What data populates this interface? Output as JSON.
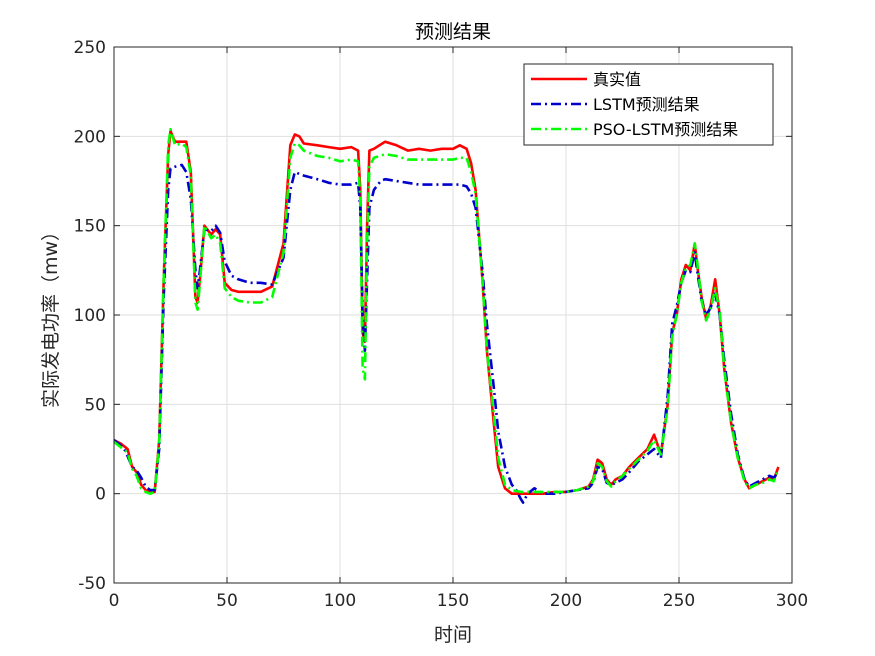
{
  "chart_data": {
    "type": "line",
    "title": "预测结果",
    "xlabel": "时间",
    "ylabel": "实际发电功率（mw）",
    "xlim": [
      0,
      300
    ],
    "ylim": [
      -50,
      250
    ],
    "xticks": [
      0,
      50,
      100,
      150,
      200,
      250,
      300
    ],
    "yticks": [
      -50,
      0,
      50,
      100,
      150,
      200,
      250
    ],
    "grid": true,
    "legend_position": "top-right",
    "series": [
      {
        "name": "真实值",
        "color": "#ff0000",
        "style": "solid",
        "points": [
          [
            0,
            30
          ],
          [
            3,
            28
          ],
          [
            6,
            25
          ],
          [
            8,
            15
          ],
          [
            10,
            12
          ],
          [
            12,
            5
          ],
          [
            14,
            2
          ],
          [
            16,
            1
          ],
          [
            18,
            1
          ],
          [
            20,
            30
          ],
          [
            22,
            120
          ],
          [
            24,
            190
          ],
          [
            25,
            203
          ],
          [
            27,
            197
          ],
          [
            30,
            197
          ],
          [
            32,
            197
          ],
          [
            34,
            180
          ],
          [
            36,
            110
          ],
          [
            37,
            107
          ],
          [
            38,
            120
          ],
          [
            40,
            150
          ],
          [
            43,
            145
          ],
          [
            45,
            148
          ],
          [
            47,
            145
          ],
          [
            49,
            118
          ],
          [
            52,
            114
          ],
          [
            55,
            113
          ],
          [
            60,
            113
          ],
          [
            65,
            113
          ],
          [
            70,
            116
          ],
          [
            75,
            140
          ],
          [
            78,
            195
          ],
          [
            80,
            201
          ],
          [
            82,
            200
          ],
          [
            84,
            196
          ],
          [
            90,
            195
          ],
          [
            95,
            194
          ],
          [
            100,
            193
          ],
          [
            105,
            194
          ],
          [
            108,
            192
          ],
          [
            109,
            170
          ],
          [
            110,
            90
          ],
          [
            111,
            85
          ],
          [
            112,
            150
          ],
          [
            113,
            192
          ],
          [
            115,
            193
          ],
          [
            120,
            197
          ],
          [
            125,
            195
          ],
          [
            130,
            192
          ],
          [
            135,
            193
          ],
          [
            140,
            192
          ],
          [
            145,
            193
          ],
          [
            150,
            193
          ],
          [
            153,
            195
          ],
          [
            156,
            193
          ],
          [
            158,
            185
          ],
          [
            160,
            170
          ],
          [
            163,
            120
          ],
          [
            165,
            80
          ],
          [
            168,
            40
          ],
          [
            170,
            15
          ],
          [
            173,
            3
          ],
          [
            176,
            0
          ],
          [
            180,
            0
          ],
          [
            185,
            0
          ],
          [
            190,
            0
          ],
          [
            195,
            1
          ],
          [
            200,
            1
          ],
          [
            205,
            2
          ],
          [
            210,
            4
          ],
          [
            212,
            8
          ],
          [
            214,
            19
          ],
          [
            216,
            17
          ],
          [
            218,
            8
          ],
          [
            220,
            5
          ],
          [
            222,
            8
          ],
          [
            225,
            10
          ],
          [
            228,
            15
          ],
          [
            232,
            20
          ],
          [
            236,
            25
          ],
          [
            239,
            33
          ],
          [
            242,
            22
          ],
          [
            245,
            50
          ],
          [
            247,
            90
          ],
          [
            249,
            100
          ],
          [
            251,
            120
          ],
          [
            253,
            128
          ],
          [
            255,
            125
          ],
          [
            257,
            140
          ],
          [
            258,
            128
          ],
          [
            260,
            110
          ],
          [
            262,
            98
          ],
          [
            264,
            105
          ],
          [
            266,
            120
          ],
          [
            268,
            100
          ],
          [
            270,
            70
          ],
          [
            273,
            40
          ],
          [
            276,
            20
          ],
          [
            279,
            8
          ],
          [
            281,
            3
          ],
          [
            284,
            5
          ],
          [
            287,
            7
          ],
          [
            290,
            9
          ],
          [
            292,
            8
          ],
          [
            294,
            15
          ]
        ]
      },
      {
        "name": "LSTM预测结果",
        "color": "#0000cd",
        "style": "dashdot",
        "points": [
          [
            0,
            30
          ],
          [
            3,
            27
          ],
          [
            5,
            24
          ],
          [
            8,
            15
          ],
          [
            10,
            13
          ],
          [
            12,
            9
          ],
          [
            14,
            4
          ],
          [
            16,
            2
          ],
          [
            18,
            2
          ],
          [
            20,
            25
          ],
          [
            22,
            110
          ],
          [
            24,
            170
          ],
          [
            25,
            182
          ],
          [
            27,
            183
          ],
          [
            30,
            184
          ],
          [
            32,
            180
          ],
          [
            34,
            165
          ],
          [
            36,
            125
          ],
          [
            37,
            115
          ],
          [
            38,
            125
          ],
          [
            40,
            148
          ],
          [
            43,
            147
          ],
          [
            45,
            150
          ],
          [
            47,
            146
          ],
          [
            49,
            130
          ],
          [
            52,
            122
          ],
          [
            55,
            120
          ],
          [
            60,
            118
          ],
          [
            65,
            118
          ],
          [
            70,
            117
          ],
          [
            75,
            132
          ],
          [
            78,
            170
          ],
          [
            80,
            180
          ],
          [
            82,
            179
          ],
          [
            84,
            178
          ],
          [
            90,
            176
          ],
          [
            95,
            174
          ],
          [
            100,
            173
          ],
          [
            105,
            173
          ],
          [
            108,
            174
          ],
          [
            109,
            160
          ],
          [
            110,
            100
          ],
          [
            111,
            80
          ],
          [
            112,
            120
          ],
          [
            113,
            160
          ],
          [
            115,
            170
          ],
          [
            118,
            175
          ],
          [
            120,
            176
          ],
          [
            125,
            175
          ],
          [
            130,
            174
          ],
          [
            135,
            173
          ],
          [
            140,
            173
          ],
          [
            145,
            173
          ],
          [
            150,
            173
          ],
          [
            153,
            173
          ],
          [
            156,
            172
          ],
          [
            158,
            168
          ],
          [
            160,
            160
          ],
          [
            163,
            125
          ],
          [
            165,
            95
          ],
          [
            168,
            60
          ],
          [
            170,
            35
          ],
          [
            173,
            15
          ],
          [
            176,
            5
          ],
          [
            178,
            2
          ],
          [
            180,
            -3
          ],
          [
            181,
            -5
          ],
          [
            183,
            0
          ],
          [
            186,
            3
          ],
          [
            190,
            0
          ],
          [
            195,
            0
          ],
          [
            200,
            1
          ],
          [
            205,
            2
          ],
          [
            210,
            3
          ],
          [
            212,
            6
          ],
          [
            214,
            15
          ],
          [
            216,
            14
          ],
          [
            218,
            6
          ],
          [
            220,
            5
          ],
          [
            222,
            6
          ],
          [
            225,
            8
          ],
          [
            228,
            12
          ],
          [
            232,
            18
          ],
          [
            236,
            22
          ],
          [
            239,
            25
          ],
          [
            242,
            20
          ],
          [
            245,
            55
          ],
          [
            247,
            95
          ],
          [
            249,
            105
          ],
          [
            251,
            118
          ],
          [
            253,
            125
          ],
          [
            255,
            124
          ],
          [
            257,
            135
          ],
          [
            258,
            125
          ],
          [
            260,
            108
          ],
          [
            262,
            100
          ],
          [
            264,
            104
          ],
          [
            266,
            112
          ],
          [
            268,
            100
          ],
          [
            270,
            75
          ],
          [
            273,
            45
          ],
          [
            276,
            22
          ],
          [
            279,
            8
          ],
          [
            281,
            4
          ],
          [
            284,
            6
          ],
          [
            287,
            8
          ],
          [
            290,
            10
          ],
          [
            292,
            9
          ],
          [
            294,
            12
          ]
        ]
      },
      {
        "name": "PSO-LSTM预测结果",
        "color": "#00ff00",
        "style": "dashdot",
        "points": [
          [
            0,
            29
          ],
          [
            3,
            26
          ],
          [
            6,
            23
          ],
          [
            8,
            14
          ],
          [
            10,
            10
          ],
          [
            12,
            3
          ],
          [
            14,
            1
          ],
          [
            16,
            0
          ],
          [
            18,
            1
          ],
          [
            20,
            28
          ],
          [
            22,
            120
          ],
          [
            24,
            195
          ],
          [
            25,
            204
          ],
          [
            27,
            195
          ],
          [
            30,
            196
          ],
          [
            32,
            194
          ],
          [
            34,
            178
          ],
          [
            36,
            107
          ],
          [
            37,
            103
          ],
          [
            38,
            118
          ],
          [
            40,
            150
          ],
          [
            43,
            143
          ],
          [
            45,
            145
          ],
          [
            47,
            140
          ],
          [
            49,
            115
          ],
          [
            52,
            110
          ],
          [
            55,
            108
          ],
          [
            60,
            107
          ],
          [
            65,
            107
          ],
          [
            70,
            110
          ],
          [
            75,
            135
          ],
          [
            78,
            188
          ],
          [
            80,
            196
          ],
          [
            82,
            195
          ],
          [
            84,
            192
          ],
          [
            90,
            189
          ],
          [
            95,
            188
          ],
          [
            100,
            186
          ],
          [
            105,
            187
          ],
          [
            108,
            186
          ],
          [
            109,
            165
          ],
          [
            110,
            70
          ],
          [
            111,
            64
          ],
          [
            112,
            140
          ],
          [
            113,
            183
          ],
          [
            115,
            188
          ],
          [
            120,
            190
          ],
          [
            125,
            189
          ],
          [
            130,
            187
          ],
          [
            135,
            187
          ],
          [
            140,
            187
          ],
          [
            145,
            187
          ],
          [
            150,
            187
          ],
          [
            153,
            188
          ],
          [
            156,
            188
          ],
          [
            158,
            180
          ],
          [
            160,
            168
          ],
          [
            163,
            120
          ],
          [
            165,
            80
          ],
          [
            168,
            45
          ],
          [
            170,
            20
          ],
          [
            173,
            5
          ],
          [
            176,
            2
          ],
          [
            180,
            1
          ],
          [
            185,
            1
          ],
          [
            190,
            1
          ],
          [
            195,
            1
          ],
          [
            200,
            1
          ],
          [
            205,
            2
          ],
          [
            210,
            4
          ],
          [
            212,
            7
          ],
          [
            214,
            17
          ],
          [
            216,
            15
          ],
          [
            218,
            7
          ],
          [
            220,
            4
          ],
          [
            222,
            7
          ],
          [
            225,
            10
          ],
          [
            228,
            14
          ],
          [
            232,
            19
          ],
          [
            236,
            24
          ],
          [
            239,
            30
          ],
          [
            242,
            22
          ],
          [
            245,
            48
          ],
          [
            247,
            88
          ],
          [
            249,
            100
          ],
          [
            251,
            118
          ],
          [
            253,
            126
          ],
          [
            255,
            128
          ],
          [
            257,
            140
          ],
          [
            258,
            130
          ],
          [
            260,
            108
          ],
          [
            262,
            97
          ],
          [
            264,
            103
          ],
          [
            266,
            115
          ],
          [
            268,
            102
          ],
          [
            270,
            70
          ],
          [
            273,
            40
          ],
          [
            276,
            20
          ],
          [
            279,
            7
          ],
          [
            281,
            3
          ],
          [
            284,
            5
          ],
          [
            287,
            6
          ],
          [
            290,
            8
          ],
          [
            292,
            7
          ],
          [
            294,
            14
          ]
        ]
      }
    ]
  }
}
